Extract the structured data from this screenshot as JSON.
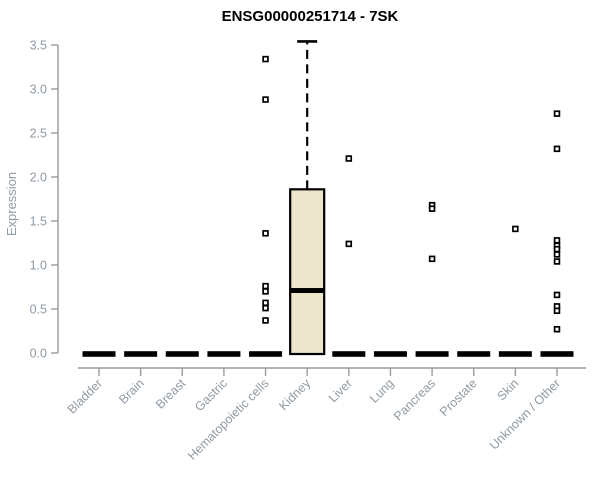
{
  "chart_data": {
    "type": "box",
    "title": "ENSG00000251714 - 7SK",
    "ylabel": "Expression",
    "xlabel": "",
    "ylim": [
      0,
      3.5
    ],
    "ytick_step": 0.5,
    "grid": false,
    "legend": "none",
    "categories": [
      "Bladder",
      "Brain",
      "Breast",
      "Gastric",
      "Hematopoietic cells",
      "Kidney",
      "Liver",
      "Lung",
      "Pancreas",
      "Prostate",
      "Skin",
      "Unknown / Other"
    ],
    "boxes": [
      {
        "category": "Bladder",
        "q1": 0,
        "median": 0,
        "q3": 0,
        "whisker_low": 0,
        "whisker_high": 0,
        "outliers": []
      },
      {
        "category": "Brain",
        "q1": 0,
        "median": 0,
        "q3": 0,
        "whisker_low": 0,
        "whisker_high": 0,
        "outliers": []
      },
      {
        "category": "Breast",
        "q1": 0,
        "median": 0,
        "q3": 0,
        "whisker_low": 0,
        "whisker_high": 0,
        "outliers": []
      },
      {
        "category": "Gastric",
        "q1": 0,
        "median": 0,
        "q3": 0,
        "whisker_low": 0,
        "whisker_high": 0,
        "outliers": []
      },
      {
        "category": "Hematopoietic cells",
        "q1": 0,
        "median": 0,
        "q3": 0,
        "whisker_low": 0,
        "whisker_high": 0,
        "outliers": [
          3.34,
          2.88,
          1.36,
          0.76,
          0.7,
          0.57,
          0.51,
          0.37
        ]
      },
      {
        "category": "Kidney",
        "q1": 0,
        "median": 0.71,
        "q3": 1.86,
        "whisker_low": 0,
        "whisker_high": 3.54,
        "outliers": []
      },
      {
        "category": "Liver",
        "q1": 0,
        "median": 0,
        "q3": 0,
        "whisker_low": 0,
        "whisker_high": 0,
        "outliers": [
          2.21,
          1.24
        ]
      },
      {
        "category": "Lung",
        "q1": 0,
        "median": 0,
        "q3": 0,
        "whisker_low": 0,
        "whisker_high": 0,
        "outliers": []
      },
      {
        "category": "Pancreas",
        "q1": 0,
        "median": 0,
        "q3": 0,
        "whisker_low": 0,
        "whisker_high": 0,
        "outliers": [
          1.68,
          1.64,
          1.07
        ]
      },
      {
        "category": "Prostate",
        "q1": 0,
        "median": 0,
        "q3": 0,
        "whisker_low": 0,
        "whisker_high": 0,
        "outliers": []
      },
      {
        "category": "Skin",
        "q1": 0,
        "median": 0,
        "q3": 0,
        "whisker_low": 0,
        "whisker_high": 0,
        "outliers": [
          1.41
        ]
      },
      {
        "category": "Unknown / Other",
        "q1": 0,
        "median": 0,
        "q3": 0,
        "whisker_low": 0,
        "whisker_high": 0,
        "outliers": [
          2.72,
          2.32,
          1.28,
          1.22,
          1.18,
          1.12,
          1.04,
          0.66,
          0.53,
          0.48,
          0.27
        ]
      }
    ],
    "style": {
      "box_fill": "#ECE6CC",
      "box_stroke": "#000000",
      "median_color": "#000000",
      "collapsed_bar_color": "#000000",
      "outlier_stroke": "#000000",
      "outlier_fill": "#ffffff",
      "axis_color": "#9B9B9B",
      "tick_label_color": "#8F9AA4",
      "title_color": "#000000"
    }
  }
}
